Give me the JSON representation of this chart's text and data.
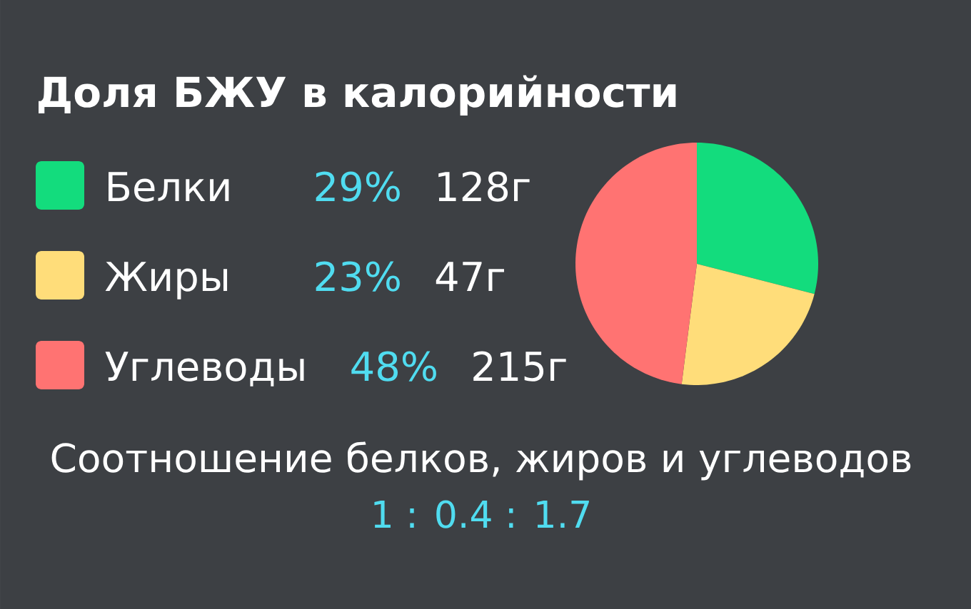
{
  "chart_data": {
    "type": "pie",
    "title": "Доля БЖУ в калорийности",
    "categories": [
      "Белки",
      "Жиры",
      "Углеводы"
    ],
    "values": [
      29,
      23,
      48
    ],
    "colors": [
      "#13dc7d",
      "#ffdd7a",
      "#ff7372"
    ],
    "value_labels": [
      "29%",
      "23%",
      "48%"
    ],
    "annotations": [
      "128г",
      "47г",
      "215г",
      "Соотношение белков, жиров и углеводов",
      "1 : 0.4 : 1.7"
    ],
    "legend": "left"
  }
}
